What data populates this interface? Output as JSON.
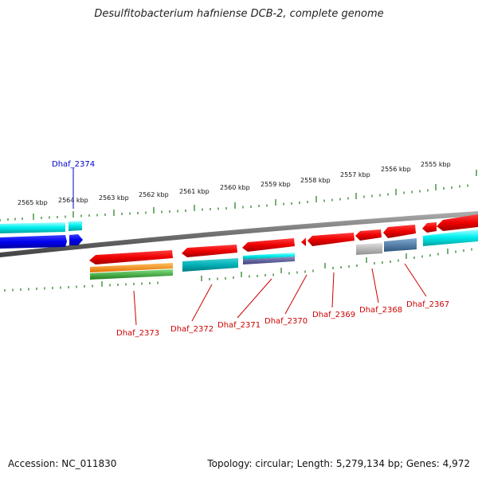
{
  "title": "Desulfitobacterium hafniense DCB-2, complete genome",
  "footer": {
    "accession": "Accession: NC_011830",
    "topology": "Topology: circular; Length: 5,279,134 bp; Genes: 4,972"
  },
  "kbp_labels": [
    "2565 kbp",
    "2564 kbp",
    "2563 kbp",
    "2562 kbp",
    "2561 kbp",
    "2560 kbp",
    "2559 kbp",
    "2558 kbp",
    "2557 kbp",
    "2556 kbp",
    "2555 kbp"
  ],
  "gene_labels": {
    "highlighted": "Dhaf_2374",
    "others": [
      "Dhaf_2373",
      "Dhaf_2372",
      "Dhaf_2371",
      "Dhaf_2370",
      "Dhaf_2369",
      "Dhaf_2368",
      "Dhaf_2367"
    ]
  },
  "colors": {
    "forward_gene": "#ff0000",
    "tick": "#1a7a1a",
    "backbone": "#808080",
    "highlight_label": "#0000cc",
    "gene_label": "#cc0000"
  }
}
